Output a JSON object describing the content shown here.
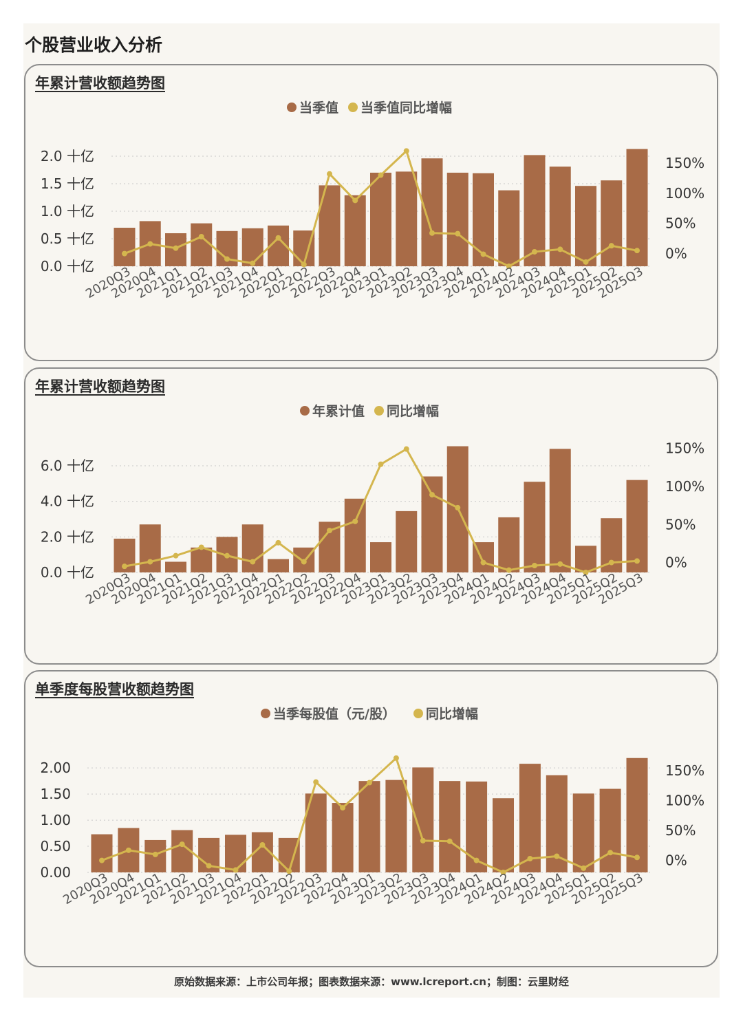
{
  "page": {
    "title": "个股营业收入分析",
    "footer": "原始数据来源：上市公司年报；图表数据来源：www.lcreport.cn；制图：云里财经"
  },
  "colors": {
    "bar": "#a86b47",
    "line": "#d4b64e",
    "grid": "#c8c8c8",
    "text": "#333333"
  },
  "chart_data": [
    {
      "type": "bar",
      "title": "年累计营收额趋势图",
      "legend": [
        "当季值",
        "当季值同比增幅"
      ],
      "categories": [
        "2020Q3",
        "2020Q4",
        "2021Q1",
        "2021Q2",
        "2021Q3",
        "2021Q4",
        "2022Q1",
        "2022Q2",
        "2022Q3",
        "2022Q4",
        "2023Q1",
        "2023Q2",
        "2023Q3",
        "2023Q4",
        "2024Q1",
        "2024Q2",
        "2024Q3",
        "2024Q4",
        "2025Q1",
        "2025Q2",
        "2025Q3"
      ],
      "series": [
        {
          "name": "当季值",
          "axis": "left",
          "values": [
            0.7,
            0.82,
            0.6,
            0.78,
            0.64,
            0.69,
            0.74,
            0.65,
            1.47,
            1.29,
            1.7,
            1.72,
            1.96,
            1.7,
            1.69,
            1.38,
            2.02,
            1.81,
            1.46,
            1.56,
            2.13
          ]
        },
        {
          "name": "当季值同比增幅",
          "axis": "right",
          "values": [
            0,
            16,
            9,
            28,
            -9,
            -16,
            26,
            -18,
            132,
            88,
            130,
            170,
            34,
            33,
            -1,
            -21,
            3,
            7,
            -14,
            13,
            5
          ]
        }
      ],
      "yticks_left": [
        "0.0 十亿",
        "0.5 十亿",
        "1.0 十亿",
        "1.5 十亿",
        "2.0 十亿"
      ],
      "ylim_left": [
        0,
        2.15
      ],
      "yticks_right": [
        "0%",
        "50%",
        "100%",
        "150%"
      ],
      "ylim_right": [
        -21,
        175
      ]
    },
    {
      "type": "bar",
      "title": "年累计营收额趋势图",
      "legend": [
        "年累计值",
        "同比增幅"
      ],
      "categories": [
        "2020Q3",
        "2020Q4",
        "2021Q1",
        "2021Q2",
        "2021Q3",
        "2021Q4",
        "2022Q1",
        "2022Q2",
        "2022Q3",
        "2022Q4",
        "2023Q1",
        "2023Q2",
        "2023Q3",
        "2023Q4",
        "2024Q1",
        "2024Q2",
        "2024Q3",
        "2024Q4",
        "2025Q1",
        "2025Q2",
        "2025Q3"
      ],
      "series": [
        {
          "name": "年累计值",
          "axis": "left",
          "values": [
            1.9,
            2.7,
            0.6,
            1.4,
            2.0,
            2.7,
            0.75,
            1.4,
            2.85,
            4.15,
            1.7,
            3.45,
            5.4,
            7.1,
            1.7,
            3.1,
            5.1,
            6.95,
            1.5,
            3.05,
            5.2
          ]
        },
        {
          "name": "同比增幅",
          "axis": "right",
          "values": [
            -5,
            1,
            9,
            20,
            9,
            1,
            26,
            1,
            42,
            54,
            129,
            149,
            89,
            72,
            0,
            -10,
            -4,
            -2,
            -13,
            0,
            2
          ]
        }
      ],
      "yticks_left": [
        "0.0 十亿",
        "2.0 十亿",
        "4.0 十亿",
        "6.0 十亿"
      ],
      "ylim_left": [
        0,
        7.2
      ],
      "yticks_right": [
        "0%",
        "50%",
        "100%",
        "150%"
      ],
      "ylim_right": [
        -13,
        155
      ]
    },
    {
      "type": "bar",
      "title": "单季度每股营收额趋势图",
      "legend": [
        "当季每股值（元/股）",
        "同比增幅"
      ],
      "categories": [
        "2020Q3",
        "2020Q4",
        "2021Q1",
        "2021Q2",
        "2021Q3",
        "2021Q4",
        "2022Q1",
        "2022Q2",
        "2022Q3",
        "2022Q4",
        "2023Q1",
        "2023Q2",
        "2023Q3",
        "2023Q4",
        "2024Q1",
        "2024Q2",
        "2024Q3",
        "2024Q4",
        "2025Q1",
        "2025Q2",
        "2025Q3"
      ],
      "series": [
        {
          "name": "当季每股值（元/股）",
          "axis": "left",
          "values": [
            0.73,
            0.85,
            0.62,
            0.81,
            0.66,
            0.72,
            0.77,
            0.66,
            1.51,
            1.33,
            1.75,
            1.77,
            2.01,
            1.75,
            1.74,
            1.42,
            2.08,
            1.86,
            1.51,
            1.6,
            2.19
          ]
        },
        {
          "name": "同比增幅",
          "axis": "right",
          "values": [
            0,
            17,
            10,
            27,
            -9,
            -16,
            26,
            -18,
            131,
            88,
            130,
            171,
            33,
            32,
            0,
            -20,
            3,
            7,
            -13,
            13,
            5
          ]
        }
      ],
      "yticks_left": [
        "0.00",
        "0.50",
        "1.00",
        "1.50",
        "2.00"
      ],
      "ylim_left": [
        0,
        2.2
      ],
      "yticks_right": [
        "0%",
        "50%",
        "100%",
        "150%"
      ],
      "ylim_right": [
        -20,
        172
      ]
    }
  ]
}
